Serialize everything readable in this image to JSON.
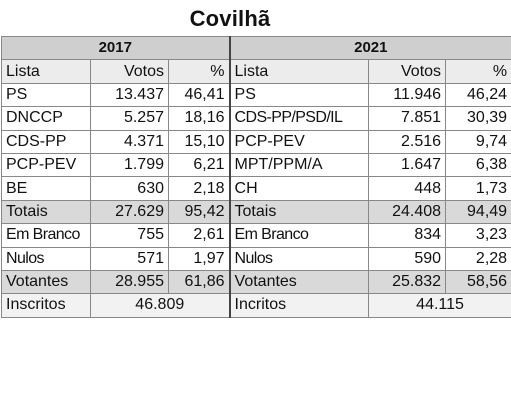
{
  "title": "Covilhã",
  "years": [
    "2017",
    "2021"
  ],
  "header": {
    "lista": "Lista",
    "votos": "Votos",
    "pct": "%"
  },
  "rows": [
    {
      "l1": "PS",
      "v1": "13.437",
      "p1": "46,41",
      "l2": "PS",
      "v2": "11.946",
      "p2": "46,24"
    },
    {
      "l1": "DNCCP",
      "v1": "5.257",
      "p1": "18,16",
      "l2": "CDS-PP/PSD/IL",
      "v2": "7.851",
      "p2": "30,39"
    },
    {
      "l1": "CDS-PP",
      "v1": "4.371",
      "p1": "15,10",
      "l2": "PCP-PEV",
      "v2": "2.516",
      "p2": "9,74"
    },
    {
      "l1": "PCP-PEV",
      "v1": "1.799",
      "p1": "6,21",
      "l2": "MPT/PPM/A",
      "v2": "1.647",
      "p2": "6,38"
    },
    {
      "l1": "BE",
      "v1": "630",
      "p1": "2,18",
      "l2": "CH",
      "v2": "448",
      "p2": "1,73"
    }
  ],
  "totais": {
    "l1": "Totais",
    "v1": "27.629",
    "p1": "95,42",
    "l2": "Totais",
    "v2": "24.408",
    "p2": "94,49"
  },
  "branco": {
    "l1": "Em Branco",
    "v1": "755",
    "p1": "2,61",
    "l2": "Em Branco",
    "v2": "834",
    "p2": "3,23"
  },
  "nulos": {
    "l1": "Nulos",
    "v1": "571",
    "p1": "1,97",
    "l2": "Nulos",
    "v2": "590",
    "p2": "2,28"
  },
  "votantes": {
    "l1": "Votantes",
    "v1": "28.955",
    "p1": "61,86",
    "l2": "Votantes",
    "v2": "25.832",
    "p2": "58,56"
  },
  "inscritos": {
    "l1": "Inscritos",
    "v1": "46.809",
    "l2": "Incritos",
    "v2": "44.115"
  }
}
